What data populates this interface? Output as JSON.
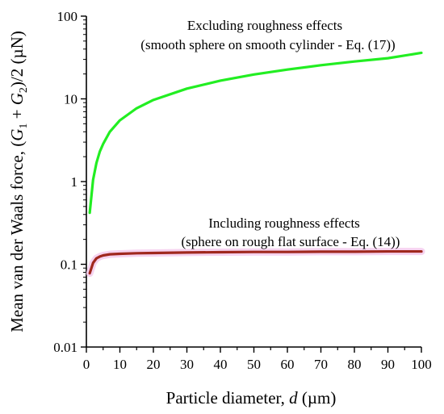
{
  "chart_data": {
    "type": "line",
    "xlabel": "Particle diameter, d (µm)",
    "ylabel": "Mean van der Waals force, (G1 + G2)/2 (µN)",
    "xlim": [
      0,
      100
    ],
    "ylim": [
      0.01,
      100
    ],
    "yscale": "log",
    "grid": false,
    "x_ticks": [
      "0",
      "10",
      "20",
      "30",
      "40",
      "50",
      "60",
      "70",
      "80",
      "90",
      "100"
    ],
    "y_ticks": [
      "0.01",
      "0.1",
      "1",
      "10",
      "100"
    ],
    "series": [
      {
        "name": "Excluding roughness effects (smooth sphere on smooth cylinder - Eq. (17))",
        "color": "#22ee22",
        "x": [
          1,
          2,
          3,
          4,
          5,
          7,
          10,
          15,
          20,
          30,
          40,
          50,
          60,
          70,
          80,
          90,
          100
        ],
        "y": [
          0.42,
          1.05,
          1.68,
          2.3,
          2.85,
          4.0,
          5.5,
          7.7,
          9.7,
          13.3,
          16.6,
          19.7,
          22.6,
          25.5,
          28.3,
          31.0,
          36.0
        ]
      },
      {
        "name": "Including roughness effects (sphere on rough flat surface - Eq. (14))",
        "color": "#a0281e",
        "x": [
          1,
          2,
          3,
          4,
          5,
          7,
          10,
          15,
          20,
          30,
          40,
          50,
          60,
          70,
          80,
          90,
          100
        ],
        "y": [
          0.078,
          0.104,
          0.118,
          0.124,
          0.128,
          0.132,
          0.134,
          0.136,
          0.137,
          0.139,
          0.14,
          0.141,
          0.141,
          0.142,
          0.142,
          0.143,
          0.143
        ]
      }
    ],
    "annotations": [
      {
        "line1": "Excluding roughness effects",
        "line2": "(smooth sphere on smooth cylinder - Eq. (17))"
      },
      {
        "line1": "Including roughness effects",
        "line2": "(sphere on rough flat surface - Eq. (14))"
      }
    ]
  }
}
